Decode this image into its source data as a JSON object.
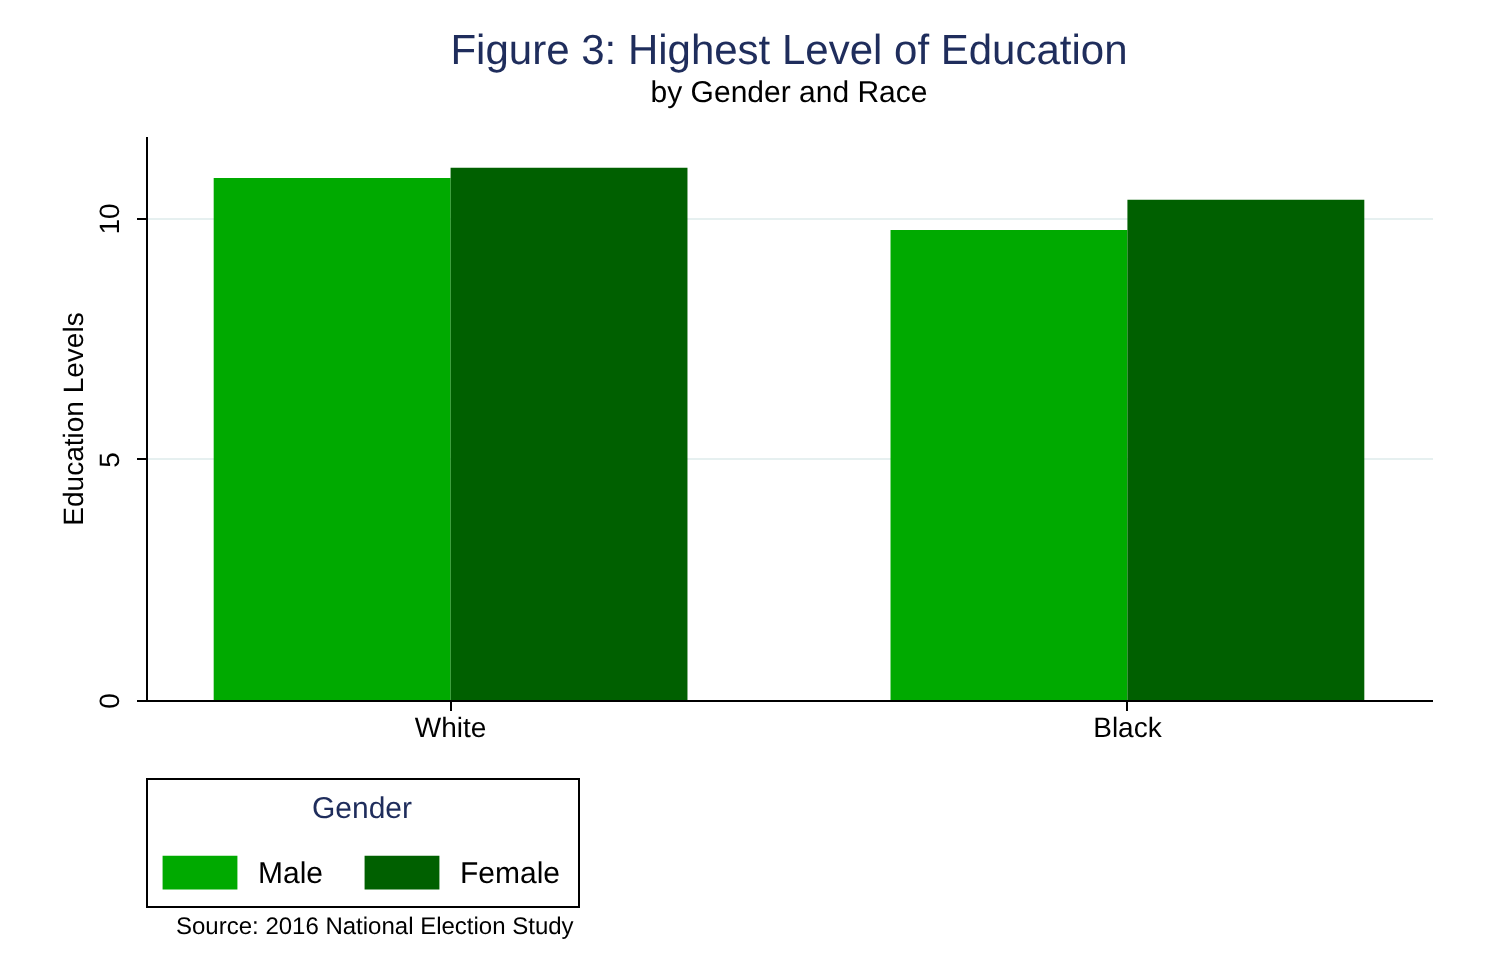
{
  "chart_data": {
    "type": "bar",
    "title": "Figure 3: Highest Level of Education",
    "subtitle": "by Gender and Race",
    "ylabel": "Education Levels",
    "legend_title": "Gender",
    "categories": [
      "White",
      "Black"
    ],
    "series": [
      {
        "name": "Male",
        "color": "#00aa00",
        "values": [
          10.83,
          9.75
        ]
      },
      {
        "name": "Female",
        "color": "#006000",
        "values": [
          11.04,
          10.38
        ]
      }
    ],
    "ylim": [
      0,
      11.7
    ],
    "yticks": [
      0,
      5,
      10
    ],
    "grid": "y",
    "legend": "bottom",
    "annotations": [
      "Source: 2016 National Election Study"
    ]
  }
}
